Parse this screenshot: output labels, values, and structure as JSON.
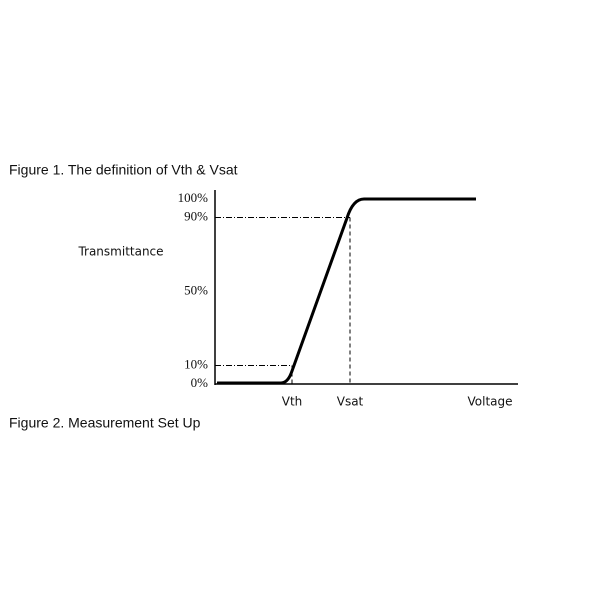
{
  "figure1": {
    "caption": "Figure 1. The definition of Vth & Vsat"
  },
  "figure2": {
    "caption": "Figure 2. Measurement Set Up"
  },
  "chart_data": {
    "type": "line",
    "ylabel": "Transmittance",
    "xlabel": "Voltage",
    "x_markers": [
      "Vth",
      "Vsat"
    ],
    "ylim": [
      0,
      100
    ],
    "yticks": [
      {
        "value": 0,
        "label": "0%"
      },
      {
        "value": 10,
        "label": "10%"
      },
      {
        "value": 50,
        "label": "50%"
      },
      {
        "value": 90,
        "label": "90%"
      },
      {
        "value": 100,
        "label": "100%"
      }
    ]
  }
}
